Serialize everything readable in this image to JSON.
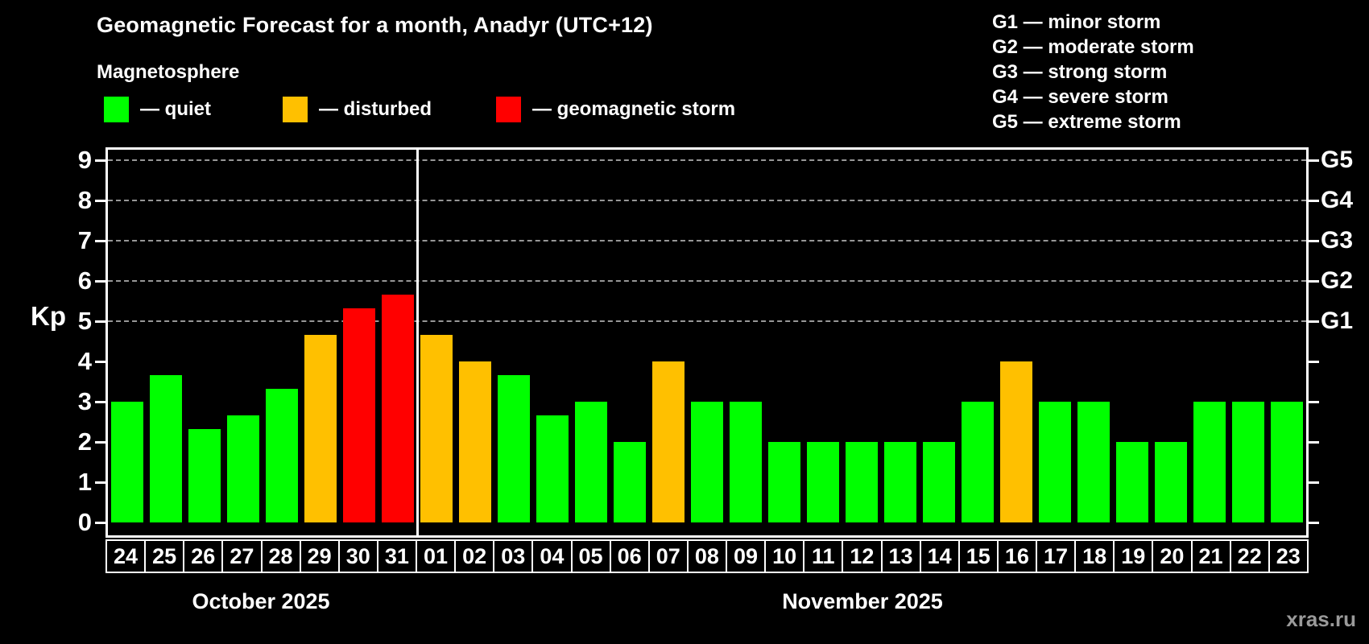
{
  "title": "Geomagnetic Forecast for a month, Anadyr (UTC+12)",
  "subtitle": "Magnetosphere",
  "legend": {
    "items": [
      {
        "name": "quiet",
        "label": "— quiet",
        "color": "#00ff00"
      },
      {
        "name": "disturbed",
        "label": "— disturbed",
        "color": "#ffc000"
      },
      {
        "name": "storm",
        "label": "— geomagnetic storm",
        "color": "#ff0000"
      }
    ]
  },
  "storm_scale": {
    "items": [
      "G1 — minor storm",
      "G2 — moderate storm",
      "G3 — strong storm",
      "G4 — severe storm",
      "G5 — extreme storm"
    ]
  },
  "watermark": "xras.ru",
  "colors": {
    "background": "#000000",
    "axis": "#ffffff",
    "grid": "#a0a0a0",
    "text": "#ffffff",
    "quiet": "#00ff00",
    "disturbed": "#ffc000",
    "storm": "#ff0000",
    "watermark": "#9a9a9a"
  },
  "chart_data": {
    "type": "bar",
    "title": "Geomagnetic Forecast for a month, Anadyr (UTC+12)",
    "xlabel": "",
    "ylabel": "Kp",
    "ylim": [
      0,
      9.4
    ],
    "y_ticks": [
      0,
      1,
      2,
      3,
      4,
      5,
      6,
      7,
      8,
      9
    ],
    "gridlines_kp": [
      5,
      6,
      7,
      8,
      9
    ],
    "grid": "dashed, storm levels only",
    "legend_position": "top",
    "right_axis_labels": [
      {
        "label": "G1",
        "kp": 5
      },
      {
        "label": "G2",
        "kp": 6
      },
      {
        "label": "G3",
        "kp": 7
      },
      {
        "label": "G4",
        "kp": 8
      },
      {
        "label": "G5",
        "kp": 9
      }
    ],
    "status_colors": {
      "quiet": "#00ff00",
      "disturbed": "#ffc000",
      "storm": "#ff0000"
    },
    "months": [
      {
        "label": "October 2025",
        "days": [
          {
            "label": "24",
            "kp": 3.0,
            "status": "quiet"
          },
          {
            "label": "25",
            "kp": 3.67,
            "status": "quiet"
          },
          {
            "label": "26",
            "kp": 2.33,
            "status": "quiet"
          },
          {
            "label": "27",
            "kp": 2.67,
            "status": "quiet"
          },
          {
            "label": "28",
            "kp": 3.33,
            "status": "quiet"
          },
          {
            "label": "29",
            "kp": 4.67,
            "status": "disturbed"
          },
          {
            "label": "30",
            "kp": 5.33,
            "status": "storm"
          },
          {
            "label": "31",
            "kp": 5.67,
            "status": "storm"
          }
        ]
      },
      {
        "label": "November 2025",
        "days": [
          {
            "label": "01",
            "kp": 4.67,
            "status": "disturbed"
          },
          {
            "label": "02",
            "kp": 4.0,
            "status": "disturbed"
          },
          {
            "label": "03",
            "kp": 3.67,
            "status": "quiet"
          },
          {
            "label": "04",
            "kp": 2.67,
            "status": "quiet"
          },
          {
            "label": "05",
            "kp": 3.0,
            "status": "quiet"
          },
          {
            "label": "06",
            "kp": 2.0,
            "status": "quiet"
          },
          {
            "label": "07",
            "kp": 4.0,
            "status": "disturbed"
          },
          {
            "label": "08",
            "kp": 3.0,
            "status": "quiet"
          },
          {
            "label": "09",
            "kp": 3.0,
            "status": "quiet"
          },
          {
            "label": "10",
            "kp": 2.0,
            "status": "quiet"
          },
          {
            "label": "11",
            "kp": 2.0,
            "status": "quiet"
          },
          {
            "label": "12",
            "kp": 2.0,
            "status": "quiet"
          },
          {
            "label": "13",
            "kp": 2.0,
            "status": "quiet"
          },
          {
            "label": "14",
            "kp": 2.0,
            "status": "quiet"
          },
          {
            "label": "15",
            "kp": 3.0,
            "status": "quiet"
          },
          {
            "label": "16",
            "kp": 4.0,
            "status": "disturbed"
          },
          {
            "label": "17",
            "kp": 3.0,
            "status": "quiet"
          },
          {
            "label": "18",
            "kp": 3.0,
            "status": "quiet"
          },
          {
            "label": "19",
            "kp": 2.0,
            "status": "quiet"
          },
          {
            "label": "20",
            "kp": 2.0,
            "status": "quiet"
          },
          {
            "label": "21",
            "kp": 3.0,
            "status": "quiet"
          },
          {
            "label": "22",
            "kp": 3.0,
            "status": "quiet"
          },
          {
            "label": "23",
            "kp": 3.0,
            "status": "quiet"
          }
        ]
      }
    ]
  }
}
